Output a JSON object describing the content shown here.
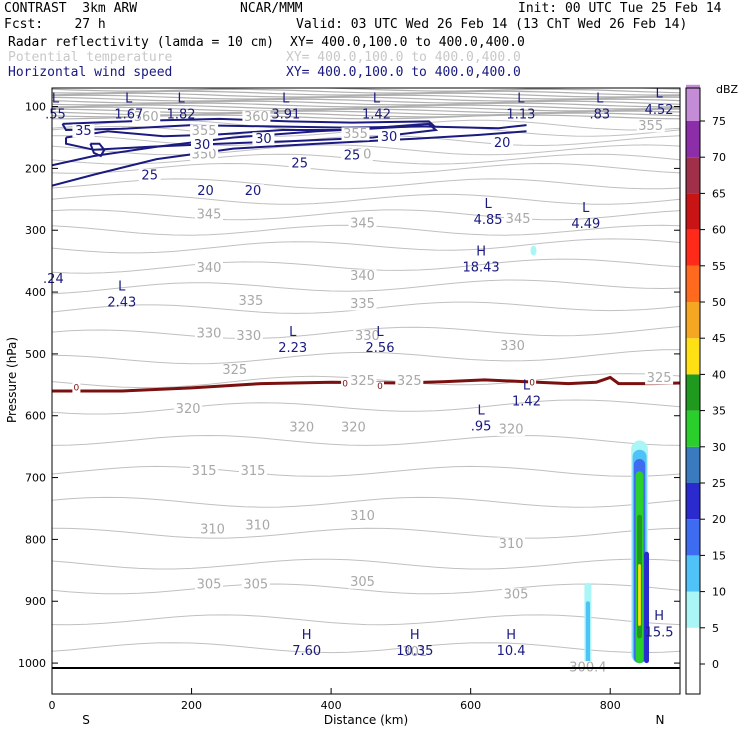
{
  "header": {
    "left1": "CONTRAST  3km ARW",
    "center1": "NCAR/MMM",
    "right1": "Init: 00 UTC Tue 25 Feb 14",
    "fcst": "Fcst:    27 h",
    "valid": "Valid: 03 UTC Wed 26 Feb 14 (13 ChT Wed 26 Feb 14)",
    "field1": "Radar reflectivity (lamda = 10 cm)",
    "field1_xy": "XY= 400.0,100.0 to 400.0,400.0",
    "field2": "Potential temperature",
    "field2_xy": "XY= 400.0,100.0 to 400.0,400.0",
    "field3": "Horizontal wind speed",
    "field3_xy": "XY= 400.0,100.0 to 400.0,400.0"
  },
  "chart_data": {
    "type": "cross-section",
    "xlabel": "Distance (km)",
    "ylabel": "Pressure (hPa)",
    "xlim": [
      0,
      900
    ],
    "ylim": [
      1050,
      70
    ],
    "x_ticks": [
      0,
      200,
      400,
      600,
      800
    ],
    "y_ticks": [
      100,
      200,
      300,
      400,
      500,
      600,
      700,
      800,
      900,
      1000
    ],
    "x_ends": {
      "left": "S",
      "right": "N"
    },
    "theta_labels": [
      {
        "text": "360",
        "x": 135,
        "p": 118
      },
      {
        "text": "360",
        "x": 293,
        "p": 118
      },
      {
        "text": "355",
        "x": 218,
        "p": 140
      },
      {
        "text": "355",
        "x": 435,
        "p": 145
      },
      {
        "text": "355",
        "x": 858,
        "p": 132
      },
      {
        "text": "350",
        "x": 218,
        "p": 178
      },
      {
        "text": "350",
        "x": 440,
        "p": 178
      },
      {
        "text": "345",
        "x": 225,
        "p": 275
      },
      {
        "text": "345",
        "x": 445,
        "p": 290
      },
      {
        "text": "345",
        "x": 668,
        "p": 283
      },
      {
        "text": "340",
        "x": 225,
        "p": 362
      },
      {
        "text": "340",
        "x": 445,
        "p": 375
      },
      {
        "text": "335",
        "x": 285,
        "p": 415
      },
      {
        "text": "335",
        "x": 445,
        "p": 420
      },
      {
        "text": "330",
        "x": 225,
        "p": 468
      },
      {
        "text": "330",
        "x": 282,
        "p": 472
      },
      {
        "text": "330",
        "x": 452,
        "p": 472
      },
      {
        "text": "330",
        "x": 660,
        "p": 488
      },
      {
        "text": "325",
        "x": 262,
        "p": 527
      },
      {
        "text": "325",
        "x": 445,
        "p": 545
      },
      {
        "text": "325",
        "x": 512,
        "p": 545
      },
      {
        "text": "325",
        "x": 870,
        "p": 540
      },
      {
        "text": "320",
        "x": 195,
        "p": 590
      },
      {
        "text": "320",
        "x": 358,
        "p": 620
      },
      {
        "text": "320",
        "x": 432,
        "p": 620
      },
      {
        "text": "320",
        "x": 658,
        "p": 623
      },
      {
        "text": "315",
        "x": 218,
        "p": 690
      },
      {
        "text": "315",
        "x": 288,
        "p": 690
      },
      {
        "text": "310",
        "x": 230,
        "p": 785
      },
      {
        "text": "310",
        "x": 295,
        "p": 778
      },
      {
        "text": "310",
        "x": 445,
        "p": 763
      },
      {
        "text": "310",
        "x": 658,
        "p": 808
      },
      {
        "text": "305",
        "x": 225,
        "p": 874
      },
      {
        "text": "305",
        "x": 292,
        "p": 874
      },
      {
        "text": "305",
        "x": 445,
        "p": 870
      },
      {
        "text": "305",
        "x": 665,
        "p": 890
      },
      {
        "text": "301",
        "x": 520,
        "p": 983
      },
      {
        "text": "300.4",
        "x": 768,
        "p": 1008
      }
    ],
    "wind_labels": [
      {
        "text": "35",
        "x": 45,
        "p": 140
      },
      {
        "text": "30",
        "x": 215,
        "p": 163
      },
      {
        "text": "30",
        "x": 303,
        "p": 153
      },
      {
        "text": "30",
        "x": 483,
        "p": 150
      },
      {
        "text": "25",
        "x": 140,
        "p": 212
      },
      {
        "text": "25",
        "x": 355,
        "p": 193
      },
      {
        "text": "25",
        "x": 430,
        "p": 180
      },
      {
        "text": "20",
        "x": 220,
        "p": 237
      },
      {
        "text": "20",
        "x": 288,
        "p": 237
      },
      {
        "text": "20",
        "x": 645,
        "p": 160
      }
    ],
    "zero_dbz_labels": [
      {
        "text": "0",
        "x": 35,
        "p": 555
      },
      {
        "text": "0",
        "x": 420,
        "p": 549
      },
      {
        "text": "0",
        "x": 470,
        "p": 553
      },
      {
        "text": "0",
        "x": 688,
        "p": 547
      }
    ],
    "extrema": [
      {
        "kind": "L",
        "value": ".55",
        "x": 5,
        "p": 88
      },
      {
        "kind": "L",
        "value": "1.67",
        "x": 110,
        "p": 88
      },
      {
        "kind": "L",
        "value": "1.82",
        "x": 185,
        "p": 88
      },
      {
        "kind": "L",
        "value": "3.91",
        "x": 335,
        "p": 88
      },
      {
        "kind": "L",
        "value": "1.42",
        "x": 465,
        "p": 88
      },
      {
        "kind": "L",
        "value": "1.13",
        "x": 672,
        "p": 88
      },
      {
        "kind": "L",
        "value": ".83",
        "x": 785,
        "p": 88
      },
      {
        "kind": "L",
        "value": "4.52",
        "x": 870,
        "p": 80
      },
      {
        "kind": "L",
        "value": "4.85",
        "x": 625,
        "p": 258
      },
      {
        "kind": "L",
        "value": "4.49",
        "x": 765,
        "p": 265
      },
      {
        "kind": "H",
        "value": "18.43",
        "x": 615,
        "p": 335
      },
      {
        "kind": "",
        "value": ".24",
        "x": 2,
        "p": 380
      },
      {
        "kind": "L",
        "value": "2.43",
        "x": 100,
        "p": 392
      },
      {
        "kind": "L",
        "value": "2.23",
        "x": 345,
        "p": 465
      },
      {
        "kind": "L",
        "value": "2.56",
        "x": 470,
        "p": 465
      },
      {
        "kind": "L",
        "value": "1.42",
        "x": 680,
        "p": 552
      },
      {
        "kind": "L",
        "value": ".95",
        "x": 615,
        "p": 592
      },
      {
        "kind": "H",
        "value": "7.60",
        "x": 365,
        "p": 955
      },
      {
        "kind": "H",
        "value": "10.35",
        "x": 520,
        "p": 955
      },
      {
        "kind": "H",
        "value": "10.4",
        "x": 658,
        "p": 955
      },
      {
        "kind": "H",
        "value": "15.5",
        "x": 870,
        "p": 925
      }
    ],
    "reflectivity_colorbar": {
      "unit": "dBZ",
      "levels": [
        0,
        5,
        10,
        15,
        20,
        25,
        30,
        35,
        40,
        45,
        50,
        55,
        60,
        65,
        70,
        75
      ],
      "colors": [
        "#ffffff",
        "#aaf5f5",
        "#4fc3f7",
        "#3d6cf0",
        "#2a2acf",
        "#3a7bbf",
        "#2bcf2b",
        "#1f9a1f",
        "#ffe014",
        "#f5a623",
        "#ff6a1f",
        "#ff2a1a",
        "#c81414",
        "#a0304a",
        "#8c2ea8",
        "#c48bd6"
      ]
    }
  }
}
